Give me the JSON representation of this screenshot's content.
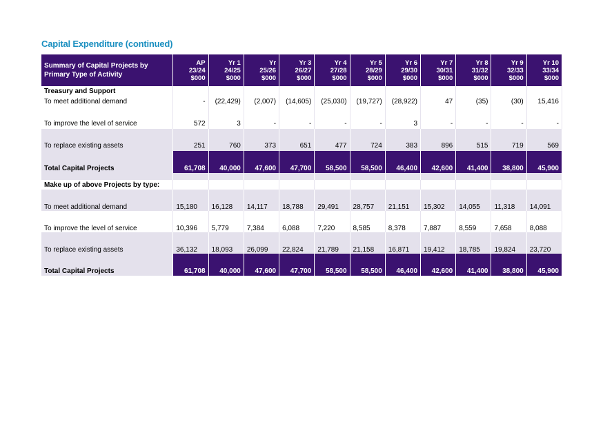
{
  "title": "Capital Expenditure (continued)",
  "table": {
    "header_label": "Summary of Capital Projects by Primary Type of Activity",
    "columns": [
      {
        "l1": "AP",
        "l2": "23/24",
        "l3": "$000"
      },
      {
        "l1": "Yr 1",
        "l2": "24/25",
        "l3": "$000"
      },
      {
        "l1": "Yr",
        "l2": "25/26",
        "l3": "$000"
      },
      {
        "l1": "Yr 3",
        "l2": "26/27",
        "l3": "$000"
      },
      {
        "l1": "Yr 4",
        "l2": "27/28",
        "l3": "$000"
      },
      {
        "l1": "Yr 5",
        "l2": "28/29",
        "l3": "$000"
      },
      {
        "l1": "Yr 6",
        "l2": "29/30",
        "l3": "$000"
      },
      {
        "l1": "Yr 7",
        "l2": "30/31",
        "l3": "$000"
      },
      {
        "l1": "Yr 8",
        "l2": "31/32",
        "l3": "$000"
      },
      {
        "l1": "Yr 9",
        "l2": "32/33",
        "l3": "$000"
      },
      {
        "l1": "Yr 10",
        "l2": "33/34",
        "l3": "$000"
      }
    ],
    "section1": {
      "label": "Treasury and Support",
      "rows": [
        {
          "label": "To meet additional demand",
          "values": [
            "-",
            "(22,429)",
            "(2,007)",
            "(14,605)",
            "(25,030)",
            "(19,727)",
            "(28,922)",
            "47",
            "(35)",
            "(30)",
            "15,416"
          ]
        },
        {
          "label": "To improve the level of service",
          "values": [
            "572",
            "3",
            "-",
            "-",
            "-",
            "-",
            "3",
            "-",
            "-",
            "-",
            "-"
          ]
        },
        {
          "label": "To replace existing assets",
          "values": [
            "251",
            "760",
            "373",
            "651",
            "477",
            "724",
            "383",
            "896",
            "515",
            "719",
            "569"
          ]
        }
      ],
      "total": {
        "label": "Total Capital Projects",
        "values": [
          "61,708",
          "40,000",
          "47,600",
          "47,700",
          "58,500",
          "58,500",
          "46,400",
          "42,600",
          "41,400",
          "38,800",
          "45,900"
        ]
      }
    },
    "section2": {
      "label": "Make up of above Projects by type:",
      "rows": [
        {
          "label": "To meet additional demand",
          "values": [
            "15,180",
            "16,128",
            "14,117",
            "18,788",
            "29,491",
            "28,757",
            "21,151",
            "15,302",
            "14,055",
            "11,318",
            "14,091"
          ]
        },
        {
          "label": "To improve the level of service",
          "values": [
            "10,396",
            "5,779",
            "7,384",
            "6,088",
            "7,220",
            "8,585",
            "8,378",
            "7,887",
            "8,559",
            "7,658",
            "8,088"
          ]
        },
        {
          "label": "To replace existing assets",
          "values": [
            "36,132",
            "18,093",
            "26,099",
            "22,824",
            "21,789",
            "21,158",
            "16,871",
            "19,412",
            "18,785",
            "19,824",
            "23,720"
          ]
        }
      ],
      "total": {
        "label": "Total Capital Projects",
        "values": [
          "61,708",
          "40,000",
          "47,600",
          "47,700",
          "58,500",
          "58,500",
          "46,400",
          "42,600",
          "41,400",
          "38,800",
          "45,900"
        ]
      }
    }
  }
}
